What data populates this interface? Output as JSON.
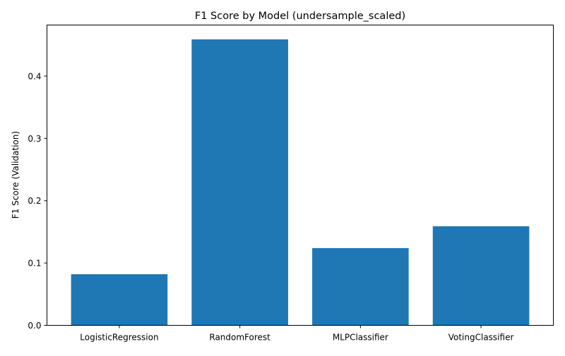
{
  "chart_data": {
    "type": "bar",
    "title": "F1 Score by Model (undersample_scaled)",
    "xlabel": "",
    "ylabel": "F1 Score (Validation)",
    "categories": [
      "LogisticRegression",
      "RandomForest",
      "MLPClassifier",
      "VotingClassifier"
    ],
    "values": [
      0.082,
      0.459,
      0.124,
      0.159
    ],
    "ylim": [
      0,
      0.482
    ],
    "yticks": [
      0.0,
      0.1,
      0.2,
      0.3,
      0.4
    ],
    "ytick_labels": [
      "0.0",
      "0.1",
      "0.2",
      "0.3",
      "0.4"
    ],
    "grid": false,
    "bar_color": "#1f77b4"
  }
}
